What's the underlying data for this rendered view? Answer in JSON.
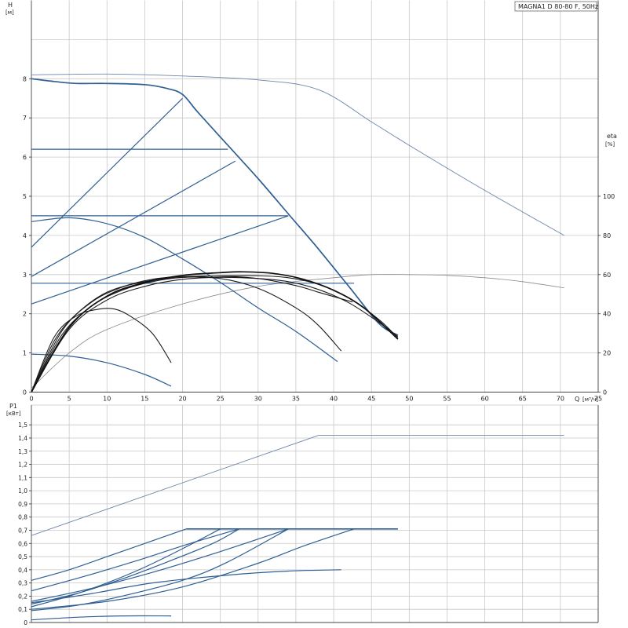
{
  "chart_data": [
    {
      "type": "line",
      "title": "MAGNA1 D 80-80 F, 50Hz",
      "ylabel": "H",
      "yunit": "[м]",
      "y2label": "eta",
      "y2unit": "[%]",
      "xlabel": "Q",
      "xunit": "[м³/ч]",
      "xlim": [
        0,
        75
      ],
      "ylim": [
        0,
        10
      ],
      "y2lim": [
        0,
        100
      ],
      "x_ticks": [
        "0",
        "5",
        "10",
        "15",
        "20",
        "25",
        "30",
        "35",
        "40",
        "45",
        "50",
        "55",
        "60",
        "65",
        "70",
        "75"
      ],
      "y_ticks": [
        "0",
        "1",
        "2",
        "3",
        "4",
        "5",
        "6",
        "7",
        "8"
      ],
      "y2_ticks": [
        "0",
        "20",
        "40",
        "60",
        "80",
        "100"
      ],
      "grid": true,
      "series": [
        {
          "role": "max-curve-single",
          "style": "thin",
          "points": [
            [
              0,
              8.1
            ],
            [
              10,
              8.12
            ],
            [
              20,
              8.07
            ],
            [
              30,
              7.97
            ],
            [
              38,
              7.72
            ],
            [
              45,
              6.9
            ],
            [
              50,
              6.3
            ],
            [
              60,
              5.15
            ],
            [
              70.5,
              4.0
            ]
          ]
        },
        {
          "role": "max-curve-single-eta",
          "style": "gray",
          "points": [
            [
              0,
              0.1
            ],
            [
              5,
              1.0
            ],
            [
              10,
              1.6
            ],
            [
              20,
              2.25
            ],
            [
              30,
              2.7
            ],
            [
              40,
              2.92
            ],
            [
              45,
              3.0
            ],
            [
              50,
              3.0
            ],
            [
              55,
              2.98
            ],
            [
              60,
              2.92
            ],
            [
              65,
              2.82
            ],
            [
              70.5,
              2.66
            ]
          ]
        },
        {
          "role": "max-curve",
          "style": "pump-b",
          "points": [
            [
              0,
              8.0
            ],
            [
              3,
              7.93
            ],
            [
              6,
              7.88
            ],
            [
              10,
              7.88
            ],
            [
              15,
              7.85
            ],
            [
              18,
              7.75
            ],
            [
              20,
              7.6
            ],
            [
              22,
              7.15
            ],
            [
              26,
              6.3
            ],
            [
              30,
              5.45
            ],
            [
              34,
              4.55
            ],
            [
              38,
              3.65
            ],
            [
              42,
              2.7
            ],
            [
              46,
              1.75
            ],
            [
              48.5,
              1.45
            ]
          ]
        },
        {
          "role": "control-line",
          "style": "pump",
          "points": [
            [
              0,
              3.7
            ],
            [
              20,
              7.5
            ]
          ]
        },
        {
          "role": "control-line",
          "style": "pump",
          "points": [
            [
              0,
              2.95
            ],
            [
              27,
              5.9
            ]
          ]
        },
        {
          "role": "control-line",
          "style": "pump",
          "points": [
            [
              0,
              2.25
            ],
            [
              34,
              4.5
            ]
          ]
        },
        {
          "role": "constant-pressure",
          "style": "pump",
          "points": [
            [
              0,
              6.2
            ],
            [
              26,
              6.2
            ]
          ]
        },
        {
          "role": "constant-pressure",
          "style": "pump",
          "points": [
            [
              0,
              4.5
            ],
            [
              34,
              4.5
            ]
          ]
        },
        {
          "role": "constant-pressure",
          "style": "pump",
          "points": [
            [
              0,
              2.78
            ],
            [
              42.7,
              2.78
            ]
          ]
        },
        {
          "role": "min-curve",
          "style": "pump",
          "points": [
            [
              0,
              4.35
            ],
            [
              5,
              4.45
            ],
            [
              10,
              4.3
            ],
            [
              15,
              3.95
            ],
            [
              20,
              3.4
            ],
            [
              25,
              2.8
            ],
            [
              30,
              2.15
            ],
            [
              35,
              1.55
            ],
            [
              40.5,
              0.78
            ]
          ]
        },
        {
          "role": "low-curve",
          "style": "pump",
          "points": [
            [
              0,
              0.97
            ],
            [
              5,
              0.92
            ],
            [
              10,
              0.75
            ],
            [
              15,
              0.45
            ],
            [
              18.5,
              0.15
            ]
          ]
        },
        {
          "role": "eff-curve",
          "style": "eff",
          "points": [
            [
              0,
              0
            ],
            [
              3,
              1.4
            ],
            [
              6,
              1.95
            ],
            [
              9,
              2.12
            ],
            [
              11,
              2.12
            ],
            [
              13,
              1.95
            ],
            [
              16,
              1.5
            ],
            [
              18.5,
              0.75
            ]
          ]
        },
        {
          "role": "eff-curve",
          "style": "eff",
          "points": [
            [
              0,
              0
            ],
            [
              3,
              1.3
            ],
            [
              6,
              2.0
            ],
            [
              10,
              2.55
            ],
            [
              15,
              2.82
            ],
            [
              20,
              2.93
            ],
            [
              25,
              2.9
            ],
            [
              30,
              2.65
            ],
            [
              35,
              2.15
            ],
            [
              38,
              1.7
            ],
            [
              41,
              1.05
            ]
          ]
        },
        {
          "role": "eff-curve",
          "style": "eff",
          "points": [
            [
              0,
              0
            ],
            [
              4,
              1.55
            ],
            [
              8,
              2.3
            ],
            [
              12,
              2.68
            ],
            [
              16,
              2.88
            ],
            [
              20,
              2.95
            ],
            [
              25,
              2.96
            ],
            [
              30,
              2.9
            ],
            [
              35,
              2.72
            ],
            [
              38,
              2.55
            ],
            [
              42.5,
              2.3
            ]
          ]
        },
        {
          "role": "eff-curve",
          "style": "eff",
          "points": [
            [
              0,
              0
            ],
            [
              4,
              1.45
            ],
            [
              8,
              2.2
            ],
            [
              12,
              2.6
            ],
            [
              16,
              2.82
            ],
            [
              20,
              2.93
            ],
            [
              26,
              2.97
            ],
            [
              30,
              2.97
            ],
            [
              34,
              2.92
            ],
            [
              38,
              2.75
            ],
            [
              42,
              2.4
            ],
            [
              46,
              1.85
            ],
            [
              48.5,
              1.38
            ]
          ]
        },
        {
          "role": "eff-curve",
          "style": "eff",
          "points": [
            [
              0,
              0
            ],
            [
              5,
              1.6
            ],
            [
              10,
              2.35
            ],
            [
              15,
              2.7
            ],
            [
              20,
              2.88
            ],
            [
              25,
              2.93
            ],
            [
              30,
              2.9
            ],
            [
              34,
              2.82
            ],
            [
              38,
              2.62
            ],
            [
              42,
              2.28
            ],
            [
              46,
              1.78
            ],
            [
              48.5,
              1.42
            ]
          ]
        },
        {
          "role": "eff-curve-max",
          "style": "eff-b",
          "points": [
            [
              0,
              0
            ],
            [
              5,
              1.65
            ],
            [
              10,
              2.45
            ],
            [
              15,
              2.8
            ],
            [
              20,
              2.98
            ],
            [
              25,
              3.05
            ],
            [
              28,
              3.07
            ],
            [
              32,
              3.03
            ],
            [
              36,
              2.88
            ],
            [
              40,
              2.6
            ],
            [
              44,
              2.15
            ],
            [
              48.5,
              1.35
            ]
          ]
        }
      ]
    },
    {
      "type": "line",
      "ylabel": "P1",
      "yunit": "[кВт]",
      "xlim": [
        0,
        75
      ],
      "ylim": [
        0,
        1.65
      ],
      "y_ticks": [
        "0",
        "0.1",
        "0.2",
        "0.3",
        "0.4",
        "0.5",
        "0.6",
        "0.7",
        "0.8",
        "0.9",
        "1.0",
        "1.1",
        "1.2",
        "1.3",
        "1.4",
        "1.5"
      ],
      "y_tick_labels": [
        "0",
        "0,1",
        "0,2",
        "0,3",
        "0,4",
        "0,5",
        "0,6",
        "0,7",
        "0,8",
        "0,9",
        "1,0",
        "1,1",
        "1,2",
        "1,3",
        "1,4",
        "1,5"
      ],
      "grid": true,
      "series": [
        {
          "role": "power-max-single",
          "style": "thin",
          "points": [
            [
              0,
              0.66
            ],
            [
              38,
              1.42
            ],
            [
              70.5,
              1.42
            ]
          ]
        },
        {
          "role": "power-max",
          "style": "pump-b",
          "points": [
            [
              20.5,
              0.71
            ],
            [
              48.5,
              0.71
            ]
          ]
        },
        {
          "role": "power",
          "style": "pump",
          "points": [
            [
              0,
              0.32
            ],
            [
              5,
              0.4
            ],
            [
              10,
              0.5
            ],
            [
              15,
              0.6
            ],
            [
              20.5,
              0.71
            ]
          ]
        },
        {
          "role": "power",
          "style": "pump",
          "points": [
            [
              0,
              0.24
            ],
            [
              7,
              0.35
            ],
            [
              14,
              0.47
            ],
            [
              21,
              0.6
            ],
            [
              27.5,
              0.71
            ]
          ]
        },
        {
          "role": "power",
          "style": "pump",
          "points": [
            [
              0,
              0.16
            ],
            [
              8,
              0.26
            ],
            [
              16,
              0.38
            ],
            [
              24,
              0.52
            ],
            [
              34,
              0.71
            ]
          ]
        },
        {
          "role": "power",
          "style": "pump",
          "points": [
            [
              0,
              0.1
            ],
            [
              10,
              0.16
            ],
            [
              20,
              0.27
            ],
            [
              30,
              0.45
            ],
            [
              36,
              0.58
            ],
            [
              42.7,
              0.71
            ]
          ]
        },
        {
          "role": "power",
          "style": "pump",
          "points": [
            [
              0,
              0.12
            ],
            [
              5,
              0.2
            ],
            [
              10,
              0.3
            ],
            [
              15,
              0.42
            ],
            [
              20,
              0.56
            ],
            [
              25,
              0.71
            ]
          ]
        },
        {
          "role": "power",
          "style": "pump",
          "points": [
            [
              0,
              0.14
            ],
            [
              6,
              0.22
            ],
            [
              12,
              0.33
            ],
            [
              18,
              0.46
            ],
            [
              24,
              0.6
            ],
            [
              27.5,
              0.71
            ]
          ]
        },
        {
          "role": "power",
          "style": "pump",
          "points": [
            [
              0,
              0.15
            ],
            [
              8,
              0.22
            ],
            [
              16,
              0.3
            ],
            [
              26,
              0.36
            ],
            [
              34,
              0.39
            ],
            [
              41,
              0.4
            ]
          ]
        },
        {
          "role": "power",
          "style": "pump",
          "points": [
            [
              0,
              0.09
            ],
            [
              6,
              0.13
            ],
            [
              12,
              0.2
            ],
            [
              20,
              0.32
            ],
            [
              26,
              0.46
            ],
            [
              34,
              0.71
            ]
          ]
        },
        {
          "role": "power",
          "style": "pump",
          "points": [
            [
              0,
              0.02
            ],
            [
              6,
              0.04
            ],
            [
              12,
              0.05
            ],
            [
              18.5,
              0.05
            ]
          ]
        }
      ]
    }
  ]
}
